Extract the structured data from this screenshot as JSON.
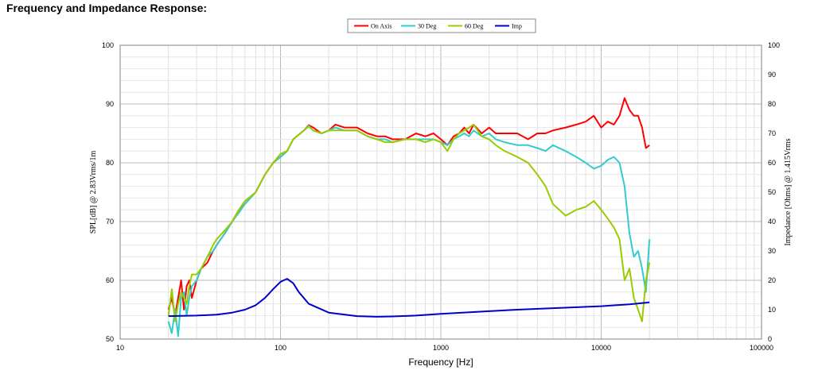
{
  "title": "Frequency and Impedance Response:",
  "chart_data": {
    "type": "line",
    "xlabel": "Frequency [Hz]",
    "ylabel": "SPL[dB] @ 2.83Vrms/1m",
    "y2label": "Impedance [Ohms] @ 1.415Vrms",
    "xscale": "log",
    "xlim": [
      10,
      100000
    ],
    "ylim": [
      50,
      100
    ],
    "y2lim": [
      0,
      100
    ],
    "x_ticks": [
      {
        "value": 10,
        "label": "10"
      },
      {
        "value": 100,
        "label": "100"
      },
      {
        "value": 1000,
        "label": "1000"
      },
      {
        "value": 10000,
        "label": "10000"
      },
      {
        "value": 100000,
        "label": "100000"
      }
    ],
    "y_ticks": [
      {
        "value": 50,
        "label": "50"
      },
      {
        "value": 60,
        "label": "60"
      },
      {
        "value": 70,
        "label": "70"
      },
      {
        "value": 80,
        "label": "80"
      },
      {
        "value": 90,
        "label": "90"
      },
      {
        "value": 100,
        "label": "100"
      }
    ],
    "y2_ticks": [
      {
        "value": 0,
        "label": "0"
      },
      {
        "value": 10,
        "label": "10"
      },
      {
        "value": 20,
        "label": "20"
      },
      {
        "value": 30,
        "label": "30"
      },
      {
        "value": 40,
        "label": "40"
      },
      {
        "value": 50,
        "label": "50"
      },
      {
        "value": 60,
        "label": "60"
      },
      {
        "value": 70,
        "label": "70"
      },
      {
        "value": 80,
        "label": "80"
      },
      {
        "value": 90,
        "label": "90"
      },
      {
        "value": 100,
        "label": "100"
      }
    ],
    "grid": true,
    "legend_position": "top-center",
    "series": [
      {
        "name": "On Axis",
        "color": "#ff0000",
        "axis": "left",
        "points": [
          [
            20,
            55
          ],
          [
            21,
            57
          ],
          [
            22,
            54
          ],
          [
            23,
            57
          ],
          [
            24,
            60
          ],
          [
            25,
            55
          ],
          [
            26,
            59
          ],
          [
            27,
            60
          ],
          [
            28,
            57
          ],
          [
            30,
            60
          ],
          [
            32,
            62
          ],
          [
            35,
            63
          ],
          [
            38,
            65
          ],
          [
            40,
            66
          ],
          [
            45,
            68
          ],
          [
            50,
            70
          ],
          [
            55,
            72
          ],
          [
            60,
            73
          ],
          [
            70,
            75
          ],
          [
            80,
            78
          ],
          [
            90,
            80
          ],
          [
            100,
            81
          ],
          [
            110,
            82
          ],
          [
            120,
            84
          ],
          [
            140,
            85.5
          ],
          [
            150,
            86.4
          ],
          [
            160,
            86
          ],
          [
            180,
            85
          ],
          [
            200,
            85.5
          ],
          [
            220,
            86.5
          ],
          [
            250,
            86
          ],
          [
            300,
            86
          ],
          [
            350,
            85
          ],
          [
            400,
            84.5
          ],
          [
            450,
            84.5
          ],
          [
            500,
            84
          ],
          [
            600,
            84
          ],
          [
            700,
            85
          ],
          [
            800,
            84.5
          ],
          [
            900,
            85
          ],
          [
            1000,
            84
          ],
          [
            1100,
            83
          ],
          [
            1200,
            84.5
          ],
          [
            1300,
            85
          ],
          [
            1400,
            86
          ],
          [
            1500,
            85
          ],
          [
            1600,
            86.5
          ],
          [
            1800,
            85
          ],
          [
            2000,
            86
          ],
          [
            2200,
            85
          ],
          [
            2500,
            85
          ],
          [
            3000,
            85
          ],
          [
            3500,
            84
          ],
          [
            4000,
            85
          ],
          [
            4500,
            85
          ],
          [
            5000,
            85.5
          ],
          [
            6000,
            86
          ],
          [
            7000,
            86.5
          ],
          [
            8000,
            87
          ],
          [
            9000,
            88
          ],
          [
            10000,
            86
          ],
          [
            11000,
            87
          ],
          [
            12000,
            86.5
          ],
          [
            13000,
            88
          ],
          [
            14000,
            91
          ],
          [
            15000,
            89
          ],
          [
            16000,
            88
          ],
          [
            17000,
            88
          ],
          [
            18000,
            86
          ],
          [
            19000,
            82.5
          ],
          [
            20000,
            83
          ]
        ]
      },
      {
        "name": "30 Deg",
        "color": "#33cccc",
        "axis": "left",
        "points": [
          [
            20,
            53
          ],
          [
            21,
            51
          ],
          [
            22,
            55
          ],
          [
            23,
            50.5
          ],
          [
            24,
            57
          ],
          [
            25,
            58
          ],
          [
            26,
            54
          ],
          [
            27,
            57
          ],
          [
            28,
            59
          ],
          [
            30,
            60
          ],
          [
            32,
            62
          ],
          [
            35,
            64
          ],
          [
            38,
            65
          ],
          [
            40,
            66
          ],
          [
            45,
            68
          ],
          [
            50,
            70
          ],
          [
            55,
            71.5
          ],
          [
            60,
            73
          ],
          [
            70,
            75
          ],
          [
            80,
            78
          ],
          [
            90,
            80
          ],
          [
            100,
            81
          ],
          [
            110,
            82
          ],
          [
            120,
            84
          ],
          [
            140,
            85.5
          ],
          [
            150,
            86.3
          ],
          [
            160,
            85.5
          ],
          [
            180,
            85
          ],
          [
            200,
            85.5
          ],
          [
            220,
            86
          ],
          [
            250,
            85.5
          ],
          [
            300,
            85.5
          ],
          [
            350,
            84.5
          ],
          [
            400,
            84
          ],
          [
            450,
            84
          ],
          [
            500,
            83.5
          ],
          [
            600,
            84
          ],
          [
            700,
            84
          ],
          [
            800,
            84
          ],
          [
            900,
            84
          ],
          [
            1000,
            83.5
          ],
          [
            1100,
            83
          ],
          [
            1200,
            84
          ],
          [
            1300,
            84.5
          ],
          [
            1400,
            85
          ],
          [
            1500,
            84.5
          ],
          [
            1600,
            85.5
          ],
          [
            1800,
            84.5
          ],
          [
            2000,
            85
          ],
          [
            2200,
            84
          ],
          [
            2500,
            83.5
          ],
          [
            3000,
            83
          ],
          [
            3500,
            83
          ],
          [
            4000,
            82.5
          ],
          [
            4500,
            82
          ],
          [
            5000,
            83
          ],
          [
            6000,
            82
          ],
          [
            7000,
            81
          ],
          [
            8000,
            80
          ],
          [
            9000,
            79
          ],
          [
            10000,
            79.5
          ],
          [
            11000,
            80.5
          ],
          [
            12000,
            81
          ],
          [
            13000,
            80
          ],
          [
            14000,
            76
          ],
          [
            15000,
            68
          ],
          [
            16000,
            64
          ],
          [
            17000,
            65
          ],
          [
            18000,
            62
          ],
          [
            19000,
            58
          ],
          [
            20000,
            67
          ]
        ]
      },
      {
        "name": "60 Deg",
        "color": "#99cc00",
        "axis": "left",
        "points": [
          [
            20,
            54
          ],
          [
            21,
            58.5
          ],
          [
            22,
            53
          ],
          [
            23,
            56
          ],
          [
            24,
            58
          ],
          [
            25,
            57
          ],
          [
            26,
            56
          ],
          [
            27,
            59
          ],
          [
            28,
            61
          ],
          [
            30,
            61
          ],
          [
            32,
            62
          ],
          [
            35,
            64
          ],
          [
            38,
            66
          ],
          [
            40,
            67
          ],
          [
            45,
            68.5
          ],
          [
            50,
            70
          ],
          [
            55,
            72
          ],
          [
            60,
            73.5
          ],
          [
            70,
            75
          ],
          [
            80,
            78
          ],
          [
            90,
            80
          ],
          [
            100,
            81.5
          ],
          [
            110,
            82
          ],
          [
            120,
            84
          ],
          [
            140,
            85.5
          ],
          [
            150,
            86.2
          ],
          [
            160,
            85.5
          ],
          [
            180,
            85
          ],
          [
            200,
            85.5
          ],
          [
            220,
            85.5
          ],
          [
            250,
            85.5
          ],
          [
            300,
            85.5
          ],
          [
            350,
            84.5
          ],
          [
            400,
            84
          ],
          [
            450,
            83.5
          ],
          [
            500,
            83.5
          ],
          [
            600,
            84
          ],
          [
            700,
            84
          ],
          [
            800,
            83.5
          ],
          [
            900,
            84
          ],
          [
            1000,
            83.5
          ],
          [
            1100,
            82
          ],
          [
            1200,
            84
          ],
          [
            1300,
            85
          ],
          [
            1400,
            85.5
          ],
          [
            1500,
            86
          ],
          [
            1600,
            86.5
          ],
          [
            1800,
            84.5
          ],
          [
            2000,
            84
          ],
          [
            2200,
            83
          ],
          [
            2500,
            82
          ],
          [
            3000,
            81
          ],
          [
            3500,
            80
          ],
          [
            4000,
            78
          ],
          [
            4500,
            76
          ],
          [
            5000,
            73
          ],
          [
            6000,
            71
          ],
          [
            7000,
            72
          ],
          [
            8000,
            72.5
          ],
          [
            9000,
            73.5
          ],
          [
            10000,
            72
          ],
          [
            11000,
            70.5
          ],
          [
            12000,
            69
          ],
          [
            13000,
            67
          ],
          [
            14000,
            60
          ],
          [
            15000,
            62
          ],
          [
            16000,
            57
          ],
          [
            17000,
            55
          ],
          [
            18000,
            53
          ],
          [
            19000,
            60
          ],
          [
            20000,
            63
          ]
        ]
      },
      {
        "name": "Imp",
        "color": "#0000cc",
        "axis": "right",
        "points": [
          [
            20,
            7.8
          ],
          [
            30,
            8
          ],
          [
            40,
            8.3
          ],
          [
            50,
            9
          ],
          [
            60,
            10
          ],
          [
            70,
            11.5
          ],
          [
            80,
            14
          ],
          [
            90,
            17
          ],
          [
            100,
            19.5
          ],
          [
            110,
            20.5
          ],
          [
            120,
            19
          ],
          [
            130,
            16
          ],
          [
            150,
            12
          ],
          [
            200,
            9
          ],
          [
            300,
            7.8
          ],
          [
            400,
            7.6
          ],
          [
            500,
            7.7
          ],
          [
            700,
            8
          ],
          [
            1000,
            8.6
          ],
          [
            2000,
            9.5
          ],
          [
            3000,
            10
          ],
          [
            5000,
            10.5
          ],
          [
            10000,
            11.2
          ],
          [
            15000,
            11.8
          ],
          [
            20000,
            12.5
          ]
        ]
      }
    ]
  }
}
